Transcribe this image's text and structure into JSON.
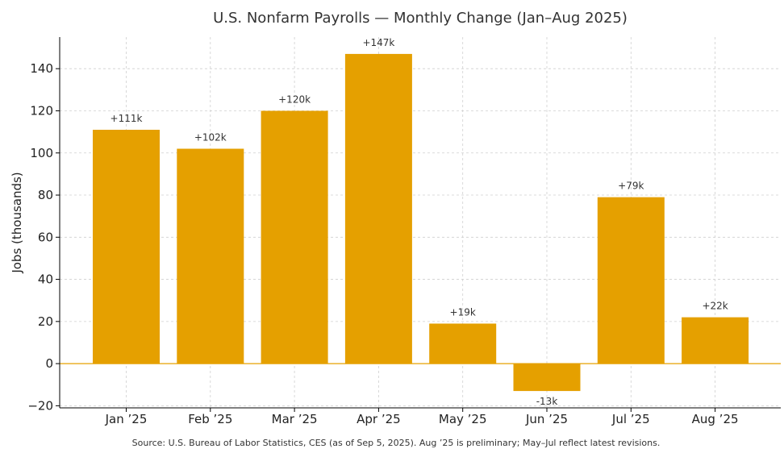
{
  "chart_data": {
    "type": "bar",
    "title": "U.S. Nonfarm Payrolls — Monthly Change (Jan–Aug 2025)",
    "xlabel": "",
    "ylabel": "Jobs (thousands)",
    "categories": [
      "Jan ’25",
      "Feb ’25",
      "Mar ’25",
      "Apr ’25",
      "May ’25",
      "Jun ’25",
      "Jul ’25",
      "Aug ’25"
    ],
    "values": [
      111,
      102,
      120,
      147,
      19,
      -13,
      79,
      22
    ],
    "data_labels": [
      "+111k",
      "+102k",
      "+120k",
      "+147k",
      "+19k",
      "-13k",
      "+79k",
      "+22k"
    ],
    "ylim": [
      -21,
      155
    ],
    "yticks": [
      -20,
      0,
      20,
      40,
      60,
      80,
      100,
      120,
      140
    ],
    "ytick_labels": [
      "−20",
      "0",
      "20",
      "40",
      "60",
      "80",
      "100",
      "120",
      "140"
    ],
    "grid": true,
    "bar_color": "#E5A000",
    "zero_line_color": "#E5A000",
    "source": "Source: U.S. Bureau of Labor Statistics, CES (as of Sep 5, 2025). Aug ’25 is preliminary; May–Jul reflect latest revisions."
  }
}
